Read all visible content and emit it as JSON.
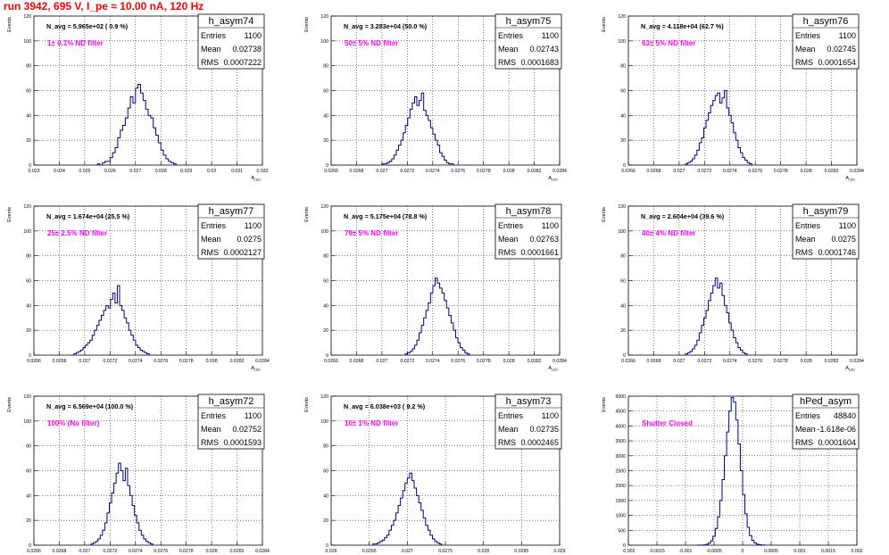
{
  "title": "run 3942,   695 V, I_pe ≈ 10.00 nA, 120 Hz",
  "colors": {
    "title": "#ff0000",
    "annotation": "#ff00ff",
    "histogram": "#000080",
    "grid": "#000000",
    "frame": "#000000"
  },
  "chart_data": [
    {
      "type": "bar",
      "stat_title": "h_asym74",
      "entries": "1100",
      "mean": "0.02738",
      "rms": "0.0007222",
      "navg": "N_avg = 5.965e+02 ( 0.9 %)",
      "annotation": "1± 0.1% ND filter",
      "xlabel": "A_LED",
      "ylabel": "Events",
      "xlim": [
        0.023,
        0.032
      ],
      "ylim": [
        0,
        120
      ],
      "xticks": [
        "0.023",
        "0.024",
        "0.025",
        "0.026",
        "0.027",
        "0.028",
        "0.029",
        "0.03",
        "0.031",
        "0.032"
      ],
      "yticks": [
        "0",
        "20",
        "40",
        "60",
        "80",
        "100",
        "120"
      ],
      "bins": {
        "start": 0.0255,
        "width": 0.0001,
        "values": [
          1,
          0,
          2,
          3,
          3,
          6,
          10,
          14,
          22,
          28,
          32,
          38,
          46,
          55,
          50,
          62,
          65,
          58,
          52,
          45,
          40,
          38,
          30,
          24,
          18,
          12,
          8,
          5,
          3,
          2,
          1
        ]
      }
    },
    {
      "type": "bar",
      "stat_title": "h_asym75",
      "entries": "1100",
      "mean": "0.02743",
      "rms": "0.0001683",
      "navg": "N_avg = 3.283e+04 (50.0 %)",
      "annotation": "50± 5% ND filter",
      "xlabel": "A_LED",
      "ylabel": "Events",
      "xlim": [
        0.0265,
        0.0285
      ],
      "ylim": [
        0,
        120
      ],
      "xticks": [
        "0.0266",
        "0.0268",
        "0.027",
        "0.0272",
        "0.0274",
        "0.0276",
        "0.0278",
        "0.028",
        "0.0282",
        "0.0284"
      ],
      "yticks": [
        "0",
        "20",
        "40",
        "60",
        "80",
        "100",
        "120"
      ],
      "bins": {
        "start": 0.02695,
        "width": 2e-05,
        "values": [
          1,
          1,
          2,
          3,
          5,
          8,
          12,
          16,
          20,
          26,
          32,
          38,
          45,
          50,
          55,
          48,
          52,
          58,
          44,
          40,
          36,
          30,
          25,
          20,
          16,
          10,
          7,
          4,
          2,
          1,
          1
        ]
      }
    },
    {
      "type": "bar",
      "stat_title": "h_asym76",
      "entries": "1100",
      "mean": "0.02745",
      "rms": "0.0001654",
      "navg": "N_avg = 4.118e+04 (62.7 %)",
      "annotation": "63± 5% ND filter",
      "xlabel": "A_LED",
      "ylabel": "Events",
      "xlim": [
        0.0265,
        0.0285
      ],
      "ylim": [
        0,
        120
      ],
      "xticks": [
        "0.0266",
        "0.0268",
        "0.027",
        "0.0272",
        "0.0274",
        "0.0276",
        "0.0278",
        "0.028",
        "0.0282",
        "0.0284"
      ],
      "yticks": [
        "0",
        "20",
        "40",
        "60",
        "80",
        "100",
        "120"
      ],
      "bins": {
        "start": 0.027,
        "width": 2e-05,
        "values": [
          1,
          2,
          3,
          5,
          8,
          12,
          18,
          22,
          30,
          36,
          42,
          48,
          52,
          56,
          58,
          50,
          54,
          60,
          46,
          40,
          34,
          26,
          20,
          14,
          10,
          6,
          4,
          2,
          1
        ]
      }
    },
    {
      "type": "bar",
      "stat_title": "h_asym77",
      "entries": "1100",
      "mean": "0.0275",
      "rms": "0.0002127",
      "navg": "N_avg = 1.674e+04 (25.5 %)",
      "annotation": "25± 2.5% ND filter",
      "xlabel": "A_LED",
      "ylabel": "Events",
      "xlim": [
        0.0265,
        0.0285
      ],
      "ylim": [
        0,
        120
      ],
      "xticks": [
        "0.0266",
        "0.0268",
        "0.027",
        "0.0272",
        "0.0274",
        "0.0276",
        "0.0278",
        "0.028",
        "0.0282",
        "0.0284"
      ],
      "yticks": [
        "0",
        "20",
        "40",
        "60",
        "80",
        "100",
        "120"
      ],
      "bins": {
        "start": 0.02685,
        "width": 2e-05,
        "values": [
          1,
          2,
          3,
          4,
          6,
          8,
          10,
          12,
          16,
          20,
          24,
          28,
          32,
          36,
          40,
          38,
          45,
          50,
          42,
          56,
          40,
          36,
          30,
          26,
          20,
          16,
          12,
          8,
          6,
          4,
          3,
          2,
          1
        ]
      }
    },
    {
      "type": "bar",
      "stat_title": "h_asym78",
      "entries": "1100",
      "mean": "0.02763",
      "rms": "0.0001661",
      "navg": "N_avg = 5.175e+04 (78.8 %)",
      "annotation": "79± 5% ND filter",
      "xlabel": "A_LED",
      "ylabel": "Events",
      "xlim": [
        0.0265,
        0.0285
      ],
      "ylim": [
        0,
        120
      ],
      "xticks": [
        "0.0266",
        "0.0268",
        "0.027",
        "0.0272",
        "0.0274",
        "0.0276",
        "0.0278",
        "0.028",
        "0.0282",
        "0.0284"
      ],
      "yticks": [
        "0",
        "20",
        "40",
        "60",
        "80",
        "100",
        "120"
      ],
      "bins": {
        "start": 0.02715,
        "width": 2e-05,
        "values": [
          1,
          2,
          3,
          5,
          8,
          12,
          18,
          24,
          30,
          36,
          42,
          50,
          56,
          62,
          58,
          54,
          50,
          44,
          38,
          32,
          26,
          20,
          14,
          10,
          6,
          4,
          2,
          1
        ]
      }
    },
    {
      "type": "bar",
      "stat_title": "h_asym79",
      "entries": "1100",
      "mean": "0.0275",
      "rms": "0.0001746",
      "navg": "N_avg = 2.604e+04 (39.6 %)",
      "annotation": "40± 4% ND filter",
      "xlabel": "A_LED",
      "ylabel": "Events",
      "xlim": [
        0.0265,
        0.0285
      ],
      "ylim": [
        0,
        120
      ],
      "xticks": [
        "0.0266",
        "0.0268",
        "0.027",
        "0.0272",
        "0.0274",
        "0.0276",
        "0.0278",
        "0.028",
        "0.0282",
        "0.0284"
      ],
      "yticks": [
        "0",
        "20",
        "40",
        "60",
        "80",
        "100",
        "120"
      ],
      "bins": {
        "start": 0.027,
        "width": 2e-05,
        "values": [
          1,
          2,
          3,
          5,
          8,
          12,
          18,
          24,
          30,
          36,
          44,
          50,
          56,
          62,
          54,
          58,
          48,
          40,
          34,
          26,
          20,
          14,
          10,
          6,
          4,
          2,
          1
        ]
      }
    },
    {
      "type": "bar",
      "stat_title": "h_asym72",
      "entries": "1100",
      "mean": "0.02752",
      "rms": "0.0001593",
      "navg": "N_avg = 6.569e+04 (100.0 %)",
      "annotation": "100% (No filter)",
      "xlabel": "A_LED",
      "ylabel": "Events",
      "xlim": [
        0.0265,
        0.0285
      ],
      "ylim": [
        0,
        120
      ],
      "xticks": [
        "0.0266",
        "0.0268",
        "0.027",
        "0.0272",
        "0.0274",
        "0.0276",
        "0.0278",
        "0.028",
        "0.0282",
        "0.0284"
      ],
      "yticks": [
        "0",
        "20",
        "40",
        "60",
        "80",
        "100",
        "120"
      ],
      "bins": {
        "start": 0.027,
        "width": 2e-05,
        "values": [
          1,
          2,
          3,
          5,
          8,
          12,
          18,
          26,
          34,
          42,
          50,
          58,
          66,
          60,
          52,
          62,
          48,
          40,
          32,
          24,
          18,
          12,
          8,
          5,
          3,
          2,
          1
        ]
      }
    },
    {
      "type": "bar",
      "stat_title": "h_asym73",
      "entries": "1100",
      "mean": "0.02735",
      "rms": "0.0002465",
      "navg": "N_avg = 6.038e+03 ( 9.2 %)",
      "annotation": "10± 1% ND filter",
      "xlabel": "A_LED",
      "ylabel": "Events",
      "xlim": [
        0.026,
        0.029
      ],
      "ylim": [
        0,
        120
      ],
      "xticks": [
        "0.026",
        "0.0265",
        "0.027",
        "0.0275",
        "0.028",
        "0.0285",
        "0.029"
      ],
      "yticks": [
        "0",
        "20",
        "40",
        "60",
        "80",
        "100",
        "120"
      ],
      "bins": {
        "start": 0.02655,
        "width": 3e-05,
        "values": [
          1,
          1,
          2,
          3,
          4,
          6,
          8,
          12,
          16,
          20,
          26,
          32,
          38,
          44,
          50,
          54,
          58,
          52,
          46,
          40,
          34,
          28,
          22,
          16,
          12,
          8,
          5,
          3,
          2,
          1
        ]
      }
    },
    {
      "type": "bar",
      "stat_title": "hPed_asym",
      "entries": "48840",
      "mean": "-1.618e-06",
      "rms": "0.0001604",
      "navg": "",
      "annotation": "Shutter Closed",
      "xlabel": "",
      "ylabel": "Events",
      "xlim": [
        -0.002,
        0.002
      ],
      "ylim": [
        0,
        5000
      ],
      "xticks": [
        "-0.002",
        "-0.0015",
        "-0.001",
        "-0.0005",
        "0",
        "0.0005",
        "0.001",
        "0.0015",
        "0.002"
      ],
      "yticks": [
        "0",
        "500",
        "1000",
        "1500",
        "2000",
        "2500",
        "3000",
        "3500",
        "4000",
        "4500",
        "5000"
      ],
      "bins": {
        "start": -0.0008,
        "width": 4e-05,
        "values": [
          1,
          2,
          5,
          12,
          30,
          70,
          150,
          300,
          560,
          950,
          1500,
          2200,
          3000,
          3800,
          4500,
          4950,
          4800,
          4200,
          3400,
          2500,
          1700,
          1050,
          600,
          320,
          160,
          75,
          35,
          15,
          6,
          2
        ]
      }
    }
  ]
}
